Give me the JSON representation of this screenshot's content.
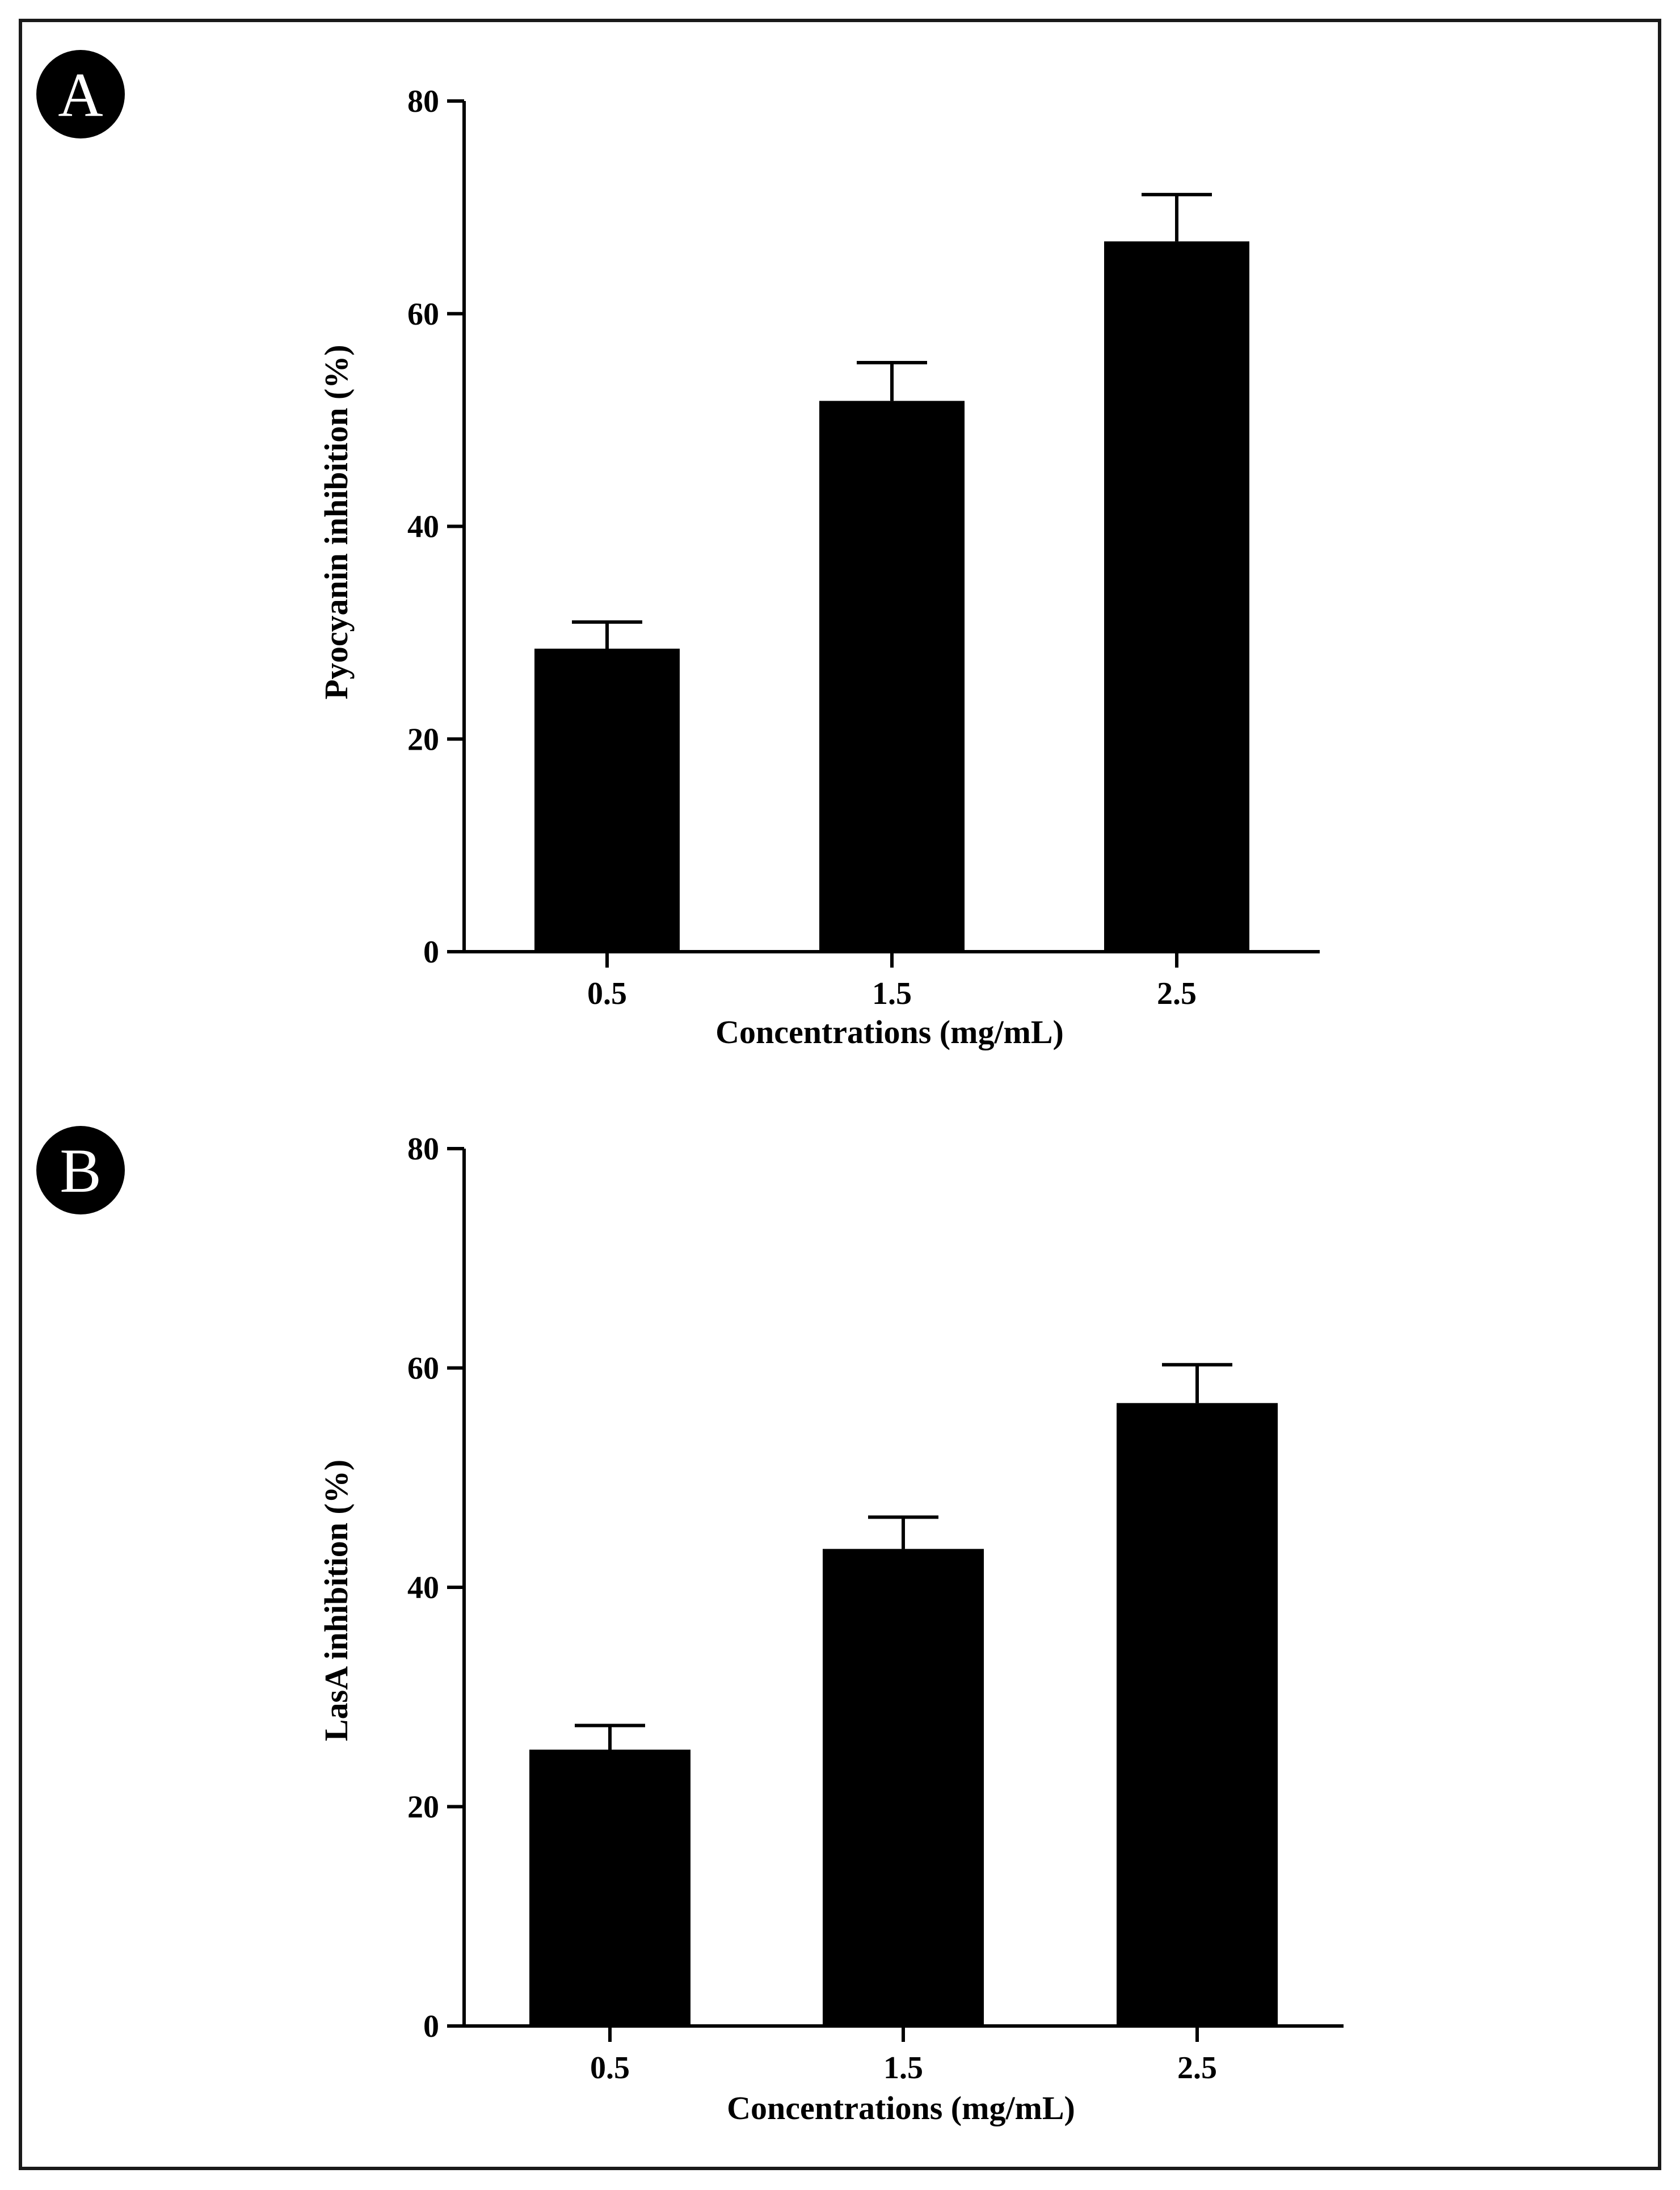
{
  "chart_data": [
    {
      "panel": "A",
      "type": "bar",
      "categories": [
        "0.5",
        "1.5",
        "2.5"
      ],
      "values": [
        28.5,
        51.8,
        66.8
      ],
      "errors": [
        2.5,
        3.6,
        4.4
      ],
      "xlabel": "Concentrations (mg/mL)",
      "ylabel": "Pyocyanin inhibition (%)",
      "ylim": [
        0,
        80
      ],
      "yticks": [
        "0",
        "20",
        "40",
        "60",
        "80"
      ],
      "bar_color": "#000000"
    },
    {
      "panel": "B",
      "type": "bar",
      "categories": [
        "0.5",
        "1.5",
        "2.5"
      ],
      "values": [
        25.2,
        43.5,
        56.8
      ],
      "errors": [
        2.2,
        2.9,
        3.5
      ],
      "xlabel": "Concentrations (mg/mL)",
      "ylabel": "LasA inhibition (%)",
      "ylim": [
        0,
        80
      ],
      "yticks": [
        "0",
        "20",
        "40",
        "60",
        "80"
      ],
      "bar_color": "#000000"
    }
  ]
}
